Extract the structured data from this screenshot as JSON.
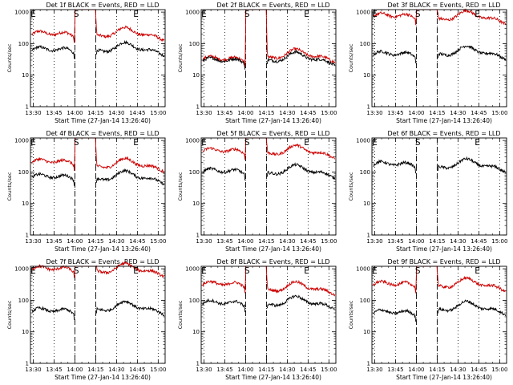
{
  "chart_data": {
    "type": "line",
    "title_prefix": "Det",
    "title_suffix": "BLACK = Events, RED = LLD",
    "detectors": [
      "1f",
      "2f",
      "3f",
      "4f",
      "5f",
      "6f",
      "7f",
      "8f",
      "9f"
    ],
    "xlabel": "Start Time (27-Jan-14 13:26:40)",
    "ylabel": "Counts/sec",
    "y_scale": "log",
    "ylim": [
      1,
      1200
    ],
    "y_ticks": [
      "1",
      "10",
      "100",
      "1000"
    ],
    "xlim": [
      "13:28",
      "15:05"
    ],
    "x_ticks": [
      "13:30",
      "13:45",
      "14:00",
      "14:15",
      "14:30",
      "14:45",
      "15:00"
    ],
    "vertical_dotted_lines": [
      "13:30",
      "13:45",
      "14:00",
      "14:15",
      "14:30",
      "14:45",
      "15:00"
    ],
    "vertical_dashed_lines": [
      "14:00",
      "14:15"
    ],
    "markers": [
      {
        "label": "E",
        "time": "13:30"
      },
      {
        "label": "S",
        "time": "14:01"
      },
      {
        "label": "E",
        "time": "14:44"
      }
    ],
    "series_colors": {
      "events": "#000000",
      "lld": "#cc0000"
    },
    "series_names": {
      "events": "Events",
      "lld": "LLD"
    },
    "panels": [
      {
        "detector": "1f",
        "events": {
          "pre": 55,
          "post": 65
        },
        "lld": {
          "pre": 175,
          "post": 195,
          "saturated": false
        }
      },
      {
        "detector": "2f",
        "events": {
          "pre": 25,
          "post": 32
        },
        "lld": {
          "pre": 28,
          "post": 40,
          "saturated": false
        }
      },
      {
        "detector": "3f",
        "events": {
          "pre": 40,
          "post": 50
        },
        "lld": {
          "pre": 650,
          "post": 660,
          "saturated": true
        }
      },
      {
        "detector": "4f",
        "events": {
          "pre": 60,
          "post": 65
        },
        "lld": {
          "pre": 180,
          "post": 160,
          "saturated": false
        }
      },
      {
        "detector": "5f",
        "events": {
          "pre": 90,
          "post": 100
        },
        "lld": {
          "pre": 400,
          "post": 420,
          "saturated": false
        }
      },
      {
        "detector": "6f",
        "events": {
          "pre": 150,
          "post": 155
        },
        "lld": null
      },
      {
        "detector": "7f",
        "events": {
          "pre": 40,
          "post": 55
        },
        "lld": {
          "pre": 850,
          "post": 880,
          "saturated": true
        }
      },
      {
        "detector": "8f",
        "events": {
          "pre": 70,
          "post": 80
        },
        "lld": {
          "pre": 280,
          "post": 230,
          "saturated": false
        }
      },
      {
        "detector": "9f",
        "events": {
          "pre": 35,
          "post": 55
        },
        "lld": {
          "pre": 280,
          "post": 300,
          "saturated": false
        }
      }
    ]
  }
}
